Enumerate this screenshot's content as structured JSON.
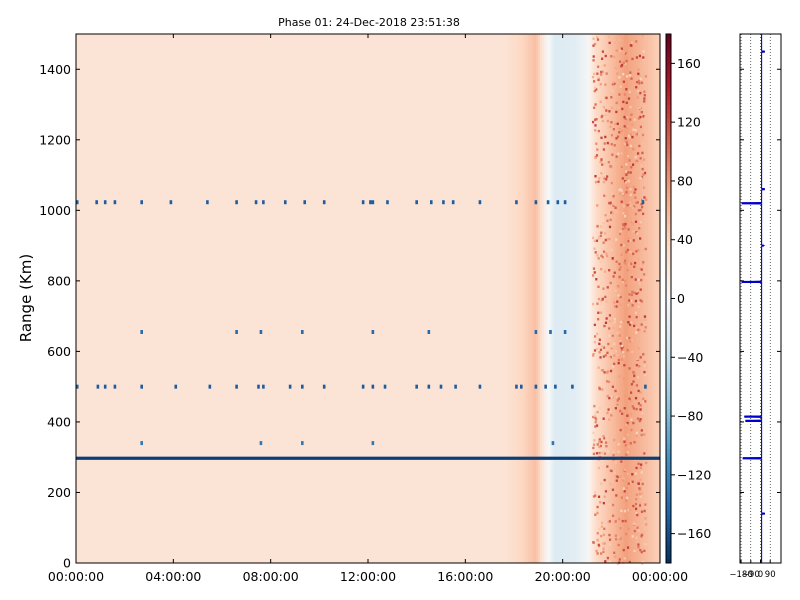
{
  "chart_data": [
    {
      "type": "heatmap",
      "title": "Phase 01: 24-Dec-2018 23:51:38",
      "ylabel": "Range (Km)",
      "xlabel": "",
      "x_range": [
        "00:00:00",
        "24:00:00"
      ],
      "x_tick_labels": [
        "00:00:00",
        "04:00:00",
        "08:00:00",
        "12:00:00",
        "16:00:00",
        "20:00:00",
        "00:00:00"
      ],
      "x_tick_hours": [
        0,
        4,
        8,
        12,
        16,
        20,
        24
      ],
      "ylim": [
        0,
        1500
      ],
      "y_ticks": [
        0,
        200,
        400,
        600,
        800,
        1000,
        1200,
        1400
      ],
      "y_tick_labels": [
        "0",
        "200",
        "400",
        "600",
        "800",
        "1000",
        "1200",
        "1400"
      ],
      "colormap": "RdBu_r",
      "clim": [
        -180,
        180
      ],
      "colorbar_ticks": [
        160,
        120,
        80,
        40,
        0,
        -40,
        -80,
        -120,
        -160
      ],
      "colorbar_tick_labels": [
        "160",
        "120",
        "80",
        "40",
        "0",
        "−40",
        "−80",
        "−120",
        "−160"
      ],
      "background_value": 25,
      "time_profile": [
        {
          "hour": 0,
          "value": 25
        },
        {
          "hour": 17.6,
          "value": 25
        },
        {
          "hour": 18.4,
          "value": 40
        },
        {
          "hour": 18.9,
          "value": 55
        },
        {
          "hour": 19.3,
          "value": 10
        },
        {
          "hour": 19.7,
          "value": -25
        },
        {
          "hour": 20.5,
          "value": -20
        },
        {
          "hour": 21.0,
          "value": -5
        },
        {
          "hour": 21.4,
          "value": 35
        },
        {
          "hour": 22.6,
          "value": 75
        },
        {
          "hour": 23.9,
          "value": 45
        }
      ],
      "strong_line": {
        "range_km": 297,
        "value": -170,
        "hour_start": 0,
        "hour_end": 24
      },
      "interference_rows": [
        {
          "range_km": 1023,
          "value": -150,
          "hours": [
            0.05,
            0.85,
            1.2,
            1.6,
            2.7,
            3.9,
            5.4,
            6.6,
            7.4,
            7.7,
            8.6,
            9.4,
            10.2,
            11.8,
            12.1,
            12.2,
            12.8,
            14.0,
            14.6,
            15.1,
            15.5,
            16.6,
            18.1,
            18.9,
            19.4,
            19.8,
            20.1,
            23.3
          ]
        },
        {
          "range_km": 500,
          "value": -150,
          "hours": [
            0.05,
            0.9,
            1.2,
            1.6,
            2.7,
            4.1,
            5.5,
            6.6,
            7.5,
            7.7,
            8.8,
            9.3,
            10.2,
            11.8,
            12.2,
            12.7,
            14.0,
            14.5,
            15.0,
            15.6,
            16.6,
            18.1,
            18.3,
            18.9,
            19.3,
            19.7,
            20.4,
            23.4
          ]
        },
        {
          "range_km": 655,
          "value": -140,
          "hours": [
            2.7,
            6.6,
            7.6,
            9.3,
            12.2,
            14.5,
            18.9,
            19.5,
            20.1
          ]
        },
        {
          "range_km": 340,
          "value": -130,
          "hours": [
            2.7,
            7.6,
            9.3,
            12.2,
            19.6
          ]
        }
      ]
    },
    {
      "type": "line",
      "x_tick_labels": [
        "−180",
        "−90",
        "0",
        "90"
      ],
      "x_ticks": [
        -180,
        -90,
        0,
        90
      ],
      "xlim": [
        -190,
        190
      ],
      "ylim": [
        0,
        1500
      ],
      "baseline": 10,
      "line_color": "#0000cc",
      "spikes": [
        {
          "range_km": 1020,
          "value": -175
        },
        {
          "range_km": 797,
          "value": -175
        },
        {
          "range_km": 415,
          "value": -150
        },
        {
          "range_km": 403,
          "value": -140
        },
        {
          "range_km": 297,
          "value": -165
        },
        {
          "range_km": 1450,
          "value": 40
        },
        {
          "range_km": 1060,
          "value": 40
        },
        {
          "range_km": 900,
          "value": 30
        },
        {
          "range_km": 140,
          "value": 40
        }
      ]
    }
  ]
}
